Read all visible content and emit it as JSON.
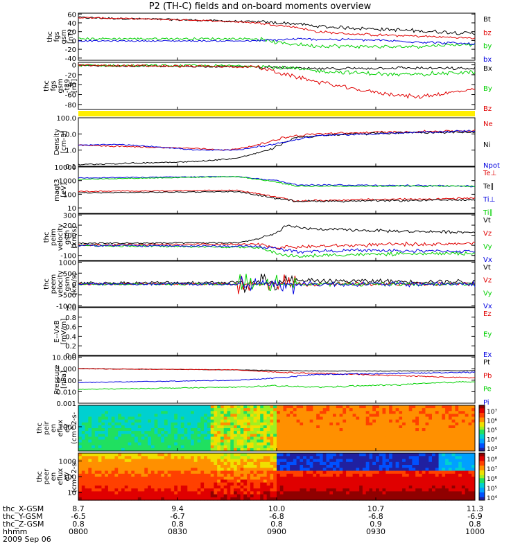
{
  "title": "P2 (TH-C) fields and on-board moments overview",
  "colors": {
    "black": "#000000",
    "red": "#e00000",
    "green": "#00d000",
    "blue": "#0000e0",
    "yellow": "#ffee00"
  },
  "chart_data": [
    {
      "type": "line",
      "id": "bfield",
      "ylabel": [
        "thc",
        "fgs",
        "gsm",
        "[nT]"
      ],
      "yticks": [
        "60",
        "40",
        "20",
        "0",
        "-20",
        "-40"
      ],
      "ylim": [
        -45,
        62
      ],
      "series": [
        {
          "name": "Bt",
          "color": "black",
          "noise": 3,
          "points": [
            [
              0,
              52
            ],
            [
              0.3,
              46
            ],
            [
              0.45,
              42
            ],
            [
              0.55,
              38
            ],
            [
              0.6,
              32
            ],
            [
              0.7,
              28
            ],
            [
              0.85,
              22
            ],
            [
              1,
              16
            ]
          ]
        },
        {
          "name": "bz",
          "color": "red",
          "noise": 2,
          "points": [
            [
              0,
              52
            ],
            [
              0.3,
              46
            ],
            [
              0.45,
              40
            ],
            [
              0.55,
              30
            ],
            [
              0.6,
              20
            ],
            [
              0.7,
              14
            ],
            [
              0.85,
              10
            ],
            [
              1,
              5
            ]
          ]
        },
        {
          "name": "by",
          "color": "green",
          "noise": 3,
          "points": [
            [
              0,
              4
            ],
            [
              0.3,
              4
            ],
            [
              0.45,
              4
            ],
            [
              0.5,
              -5
            ],
            [
              0.6,
              -12
            ],
            [
              0.8,
              -15
            ],
            [
              1,
              -8
            ]
          ]
        },
        {
          "name": "bx",
          "color": "blue",
          "noise": 2,
          "points": [
            [
              0,
              -1
            ],
            [
              0.45,
              -1
            ],
            [
              0.55,
              3
            ],
            [
              0.7,
              2
            ],
            [
              0.85,
              -3
            ],
            [
              1,
              -8
            ]
          ]
        }
      ]
    },
    {
      "type": "line",
      "id": "bfield2",
      "ylabel": [
        "thc",
        "fgs",
        "gsm",
        "-t89",
        "[nT]"
      ],
      "yticks": [
        "0",
        "-20",
        "-40",
        "-60",
        "-80"
      ],
      "ylim": [
        -90,
        5
      ],
      "series": [
        {
          "name": "Bx",
          "color": "black",
          "noise": 2,
          "points": [
            [
              0,
              -2
            ],
            [
              0.45,
              -4
            ],
            [
              0.6,
              -8
            ],
            [
              0.8,
              -6
            ],
            [
              1,
              -8
            ]
          ]
        },
        {
          "name": "By",
          "color": "green",
          "noise": 3,
          "points": [
            [
              0,
              -1
            ],
            [
              0.45,
              -2
            ],
            [
              0.6,
              -12
            ],
            [
              0.8,
              -20
            ],
            [
              1,
              -15
            ]
          ]
        },
        {
          "name": "Bz",
          "color": "red",
          "noise": 3,
          "points": [
            [
              0,
              -1
            ],
            [
              0.45,
              -4
            ],
            [
              0.55,
              -25
            ],
            [
              0.7,
              -50
            ],
            [
              0.85,
              -65
            ],
            [
              1,
              -50
            ]
          ]
        }
      ]
    },
    {
      "type": "line",
      "id": "density",
      "ylabel": [
        "Density",
        "[cm-3]"
      ],
      "yticks": [
        "100.0",
        "10.0",
        "1.0",
        "0.1"
      ],
      "ylim": [
        -1,
        2
      ],
      "log": true,
      "series": [
        {
          "name": "Ne",
          "color": "red",
          "noise": 0.05,
          "points": [
            [
              0,
              0.3
            ],
            [
              0.3,
              0.1
            ],
            [
              0.38,
              0
            ],
            [
              0.45,
              0.3
            ],
            [
              0.52,
              0.8
            ],
            [
              0.6,
              1.0
            ],
            [
              0.75,
              1.1
            ],
            [
              1,
              1.2
            ]
          ]
        },
        {
          "name": "Ni",
          "color": "black",
          "noise": 0.05,
          "points": [
            [
              0,
              -0.9
            ],
            [
              0.3,
              -0.7
            ],
            [
              0.4,
              -0.5
            ],
            [
              0.48,
              0
            ],
            [
              0.55,
              0.8
            ],
            [
              0.7,
              1.0
            ],
            [
              0.85,
              1.1
            ],
            [
              1,
              1.1
            ]
          ]
        },
        {
          "name": "Npot",
          "color": "blue",
          "noise": 0.04,
          "points": [
            [
              0,
              0.3
            ],
            [
              0.1,
              0.35
            ],
            [
              0.2,
              0.2
            ],
            [
              0.3,
              0
            ],
            [
              0.4,
              0
            ],
            [
              0.5,
              0.4
            ],
            [
              0.6,
              0.9
            ],
            [
              1,
              1.2
            ]
          ]
        }
      ]
    },
    {
      "type": "line",
      "id": "temp",
      "ylabel": [
        "magt3",
        "[eV]"
      ],
      "yticks": [
        "10000",
        "1000",
        "100",
        "10"
      ],
      "ylim": [
        0.6,
        4
      ],
      "log": true,
      "series": [
        {
          "name": "Te⊥",
          "color": "red",
          "noise": 0.05,
          "points": [
            [
              0,
              2.2
            ],
            [
              0.4,
              2.3
            ],
            [
              0.5,
              1.8
            ],
            [
              0.55,
              1.5
            ],
            [
              0.7,
              1.6
            ],
            [
              1,
              1.7
            ]
          ]
        },
        {
          "name": "Te∥",
          "color": "black",
          "noise": 0.05,
          "points": [
            [
              0,
              2.1
            ],
            [
              0.4,
              2.2
            ],
            [
              0.5,
              1.7
            ],
            [
              0.55,
              1.5
            ],
            [
              0.7,
              1.5
            ],
            [
              1,
              1.6
            ]
          ]
        },
        {
          "name": "Ti⊥",
          "color": "blue",
          "noise": 0.04,
          "points": [
            [
              0,
              3.2
            ],
            [
              0.4,
              3.3
            ],
            [
              0.5,
              3.0
            ],
            [
              0.55,
              2.7
            ],
            [
              1,
              2.6
            ]
          ]
        },
        {
          "name": "Ti∥",
          "color": "green",
          "noise": 0.04,
          "points": [
            [
              0,
              3.1
            ],
            [
              0.4,
              3.3
            ],
            [
              0.5,
              2.9
            ],
            [
              0.55,
              2.6
            ],
            [
              1,
              2.6
            ]
          ]
        }
      ]
    },
    {
      "type": "line",
      "id": "vel1",
      "ylabel": [
        "thc",
        "peim",
        "velocity",
        "gsm",
        "[km/s]"
      ],
      "yticks": [
        "300",
        "200",
        "100",
        "0",
        "-100"
      ],
      "ylim": [
        -150,
        310
      ],
      "series": [
        {
          "name": "Vt",
          "color": "black",
          "noise": 10,
          "points": [
            [
              0,
              20
            ],
            [
              0.4,
              25
            ],
            [
              0.45,
              60
            ],
            [
              0.5,
              120
            ],
            [
              0.52,
              190
            ],
            [
              0.6,
              160
            ],
            [
              0.8,
              140
            ],
            [
              1,
              130
            ]
          ]
        },
        {
          "name": "Vz",
          "color": "red",
          "noise": 12,
          "points": [
            [
              0,
              5
            ],
            [
              0.45,
              10
            ],
            [
              0.5,
              -20
            ],
            [
              0.6,
              -10
            ],
            [
              0.8,
              10
            ],
            [
              1,
              20
            ]
          ]
        },
        {
          "name": "Vy",
          "color": "green",
          "noise": 12,
          "points": [
            [
              0,
              0
            ],
            [
              0.45,
              -20
            ],
            [
              0.5,
              -80
            ],
            [
              0.55,
              -110
            ],
            [
              0.7,
              -90
            ],
            [
              1,
              -80
            ]
          ]
        },
        {
          "name": "Vx",
          "color": "blue",
          "noise": 12,
          "points": [
            [
              0,
              0
            ],
            [
              0.45,
              -10
            ],
            [
              0.55,
              -60
            ],
            [
              0.7,
              -50
            ],
            [
              1,
              -60
            ]
          ]
        }
      ]
    },
    {
      "type": "line",
      "id": "vel2",
      "ylabel": [
        "thc",
        "peem",
        "velocity",
        "gsm",
        "[km/s]"
      ],
      "yticks": [
        "1000",
        "500",
        "0",
        "-500",
        "-1000"
      ],
      "ylim": [
        -1050,
        1050
      ],
      "series": [
        {
          "name": "Vt",
          "color": "black",
          "noise": 80,
          "points": [
            [
              0,
              40
            ],
            [
              0.4,
              80
            ],
            [
              0.6,
              150
            ],
            [
              1,
              100
            ]
          ]
        },
        {
          "name": "Vz",
          "color": "red",
          "noise": 60,
          "points": [
            [
              0,
              0
            ],
            [
              1,
              0
            ]
          ]
        },
        {
          "name": "Vy",
          "color": "green",
          "noise": 60,
          "points": [
            [
              0,
              0
            ],
            [
              1,
              0
            ]
          ]
        },
        {
          "name": "Vx",
          "color": "blue",
          "noise": 80,
          "points": [
            [
              0,
              0
            ],
            [
              1,
              0
            ]
          ]
        }
      ]
    },
    {
      "type": "line",
      "id": "efield",
      "ylabel": [
        "E--VxB",
        "[mV/m]"
      ],
      "yticks": [
        "1.0",
        "0.8",
        "0.6",
        "0.4",
        "0.2",
        "0.0"
      ],
      "ylim": [
        0,
        1
      ],
      "series": [
        {
          "name": "Ez",
          "color": "red",
          "noise": 0,
          "points": []
        },
        {
          "name": "Ey",
          "color": "green",
          "noise": 0,
          "points": []
        },
        {
          "name": "Ex",
          "color": "blue",
          "noise": 0,
          "points": []
        }
      ]
    },
    {
      "type": "line",
      "id": "pressure",
      "ylabel": [
        "Pressure",
        "[nPa]"
      ],
      "yticks": [
        "10.000",
        "1.000",
        "0.100",
        "0.010",
        "0.001"
      ],
      "ylim": [
        -3,
        1.1
      ],
      "log": true,
      "series": [
        {
          "name": "Pt",
          "color": "black",
          "noise": 0.02,
          "points": [
            [
              0,
              0
            ],
            [
              0.4,
              -0.1
            ],
            [
              0.6,
              -0.2
            ],
            [
              0.8,
              -0.2
            ],
            [
              1,
              -0.15
            ]
          ]
        },
        {
          "name": "Pb",
          "color": "red",
          "noise": 0.04,
          "points": [
            [
              0,
              0
            ],
            [
              0.4,
              -0.1
            ],
            [
              0.5,
              -0.3
            ],
            [
              0.6,
              -0.4
            ],
            [
              0.8,
              -0.6
            ],
            [
              1,
              -0.8
            ]
          ]
        },
        {
          "name": "Pe",
          "color": "green",
          "noise": 0.05,
          "points": [
            [
              0,
              -1.8
            ],
            [
              0.4,
              -1.6
            ],
            [
              0.5,
              -1.5
            ],
            [
              0.6,
              -1.6
            ],
            [
              0.8,
              -1.4
            ],
            [
              1,
              -1.1
            ]
          ]
        },
        {
          "name": "Pi",
          "color": "blue",
          "noise": 0.04,
          "points": [
            [
              0,
              -1.2
            ],
            [
              0.4,
              -1.0
            ],
            [
              0.5,
              -0.8
            ],
            [
              0.6,
              -0.5
            ],
            [
              0.8,
              -0.4
            ],
            [
              1,
              -0.3
            ]
          ]
        }
      ]
    },
    {
      "type": "heatmap",
      "id": "peir",
      "ylabel": [
        "thc",
        "peir",
        "en",
        "eflux",
        "eV",
        "(cm^2-s-",
        "sr-eV)"
      ],
      "yticks": [
        "1000"
      ],
      "colorbar_ticks": [
        "10⁷",
        "10⁶",
        "10⁵",
        "10⁴",
        "10³"
      ]
    },
    {
      "type": "heatmap",
      "id": "peer",
      "ylabel": [
        "thc",
        "peer",
        "en",
        "eflux",
        "eV",
        "(cm^2-s-",
        "sr-eV)"
      ],
      "yticks": [
        "1000",
        "100",
        "10"
      ],
      "colorbar_ticks": [
        "10⁸",
        "10⁷",
        "10⁶",
        "10⁵",
        "10⁴"
      ]
    }
  ],
  "xaxis": {
    "rows": [
      {
        "label": "thc_X-GSM",
        "ticks": [
          "8.7",
          "9.4",
          "10.0",
          "10.7",
          "11.3"
        ]
      },
      {
        "label": "thc_Y-GSM",
        "ticks": [
          "-6.5",
          "-6.7",
          "-6.8",
          "-6.8",
          "-6.9"
        ]
      },
      {
        "label": "thc_Z-GSM",
        "ticks": [
          "0.8",
          "0.8",
          "0.8",
          "0.9",
          "0.8"
        ]
      },
      {
        "label": "hhmm",
        "ticks": [
          "0800",
          "0830",
          "0900",
          "0930",
          "1000"
        ]
      }
    ],
    "date": "2009 Sep 06"
  }
}
